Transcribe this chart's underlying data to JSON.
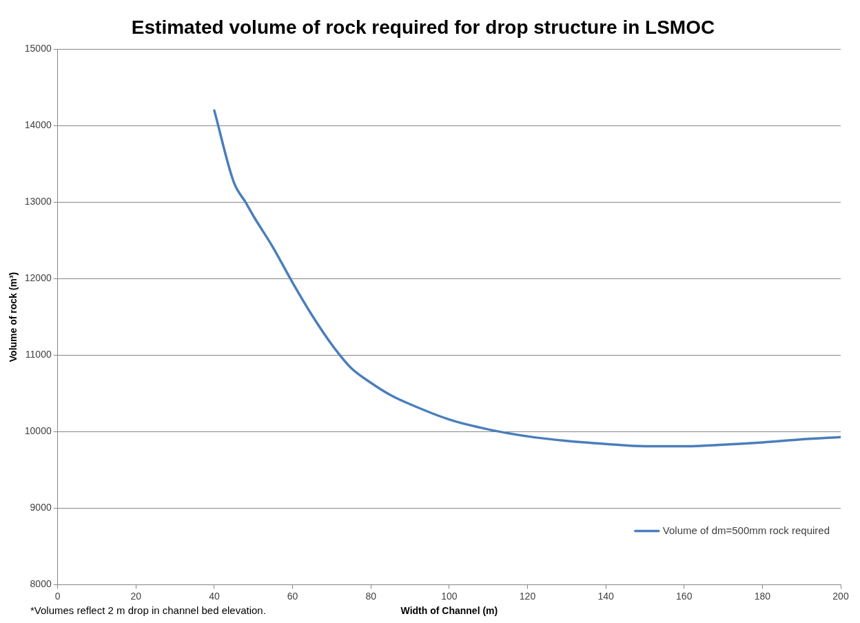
{
  "chart_data": {
    "type": "line",
    "title": "Estimated volume of rock required for drop structure in LSMOC",
    "xlabel": "Width of Channel (m)",
    "ylabel": "Volume of rock (m³)",
    "x": [
      40,
      45,
      48,
      50,
      55,
      60,
      65,
      70,
      75,
      80,
      85,
      90,
      100,
      110,
      120,
      130,
      140,
      150,
      155,
      160,
      170,
      180,
      190,
      200
    ],
    "series": [
      {
        "name": "Volume of dm=500mm rock required",
        "color": "#4a7ebb",
        "values": [
          14200,
          13260,
          13000,
          12820,
          12410,
          11950,
          11520,
          11140,
          10830,
          10640,
          10480,
          10360,
          10160,
          10030,
          9940,
          9880,
          9840,
          9810,
          9810,
          9810,
          9830,
          9860,
          9900,
          9930
        ]
      }
    ],
    "xlim": [
      0,
      200
    ],
    "xticks": [
      0,
      20,
      40,
      60,
      80,
      100,
      120,
      140,
      160,
      180,
      200
    ],
    "ylim": [
      8000,
      15000
    ],
    "yticks": [
      8000,
      9000,
      10000,
      11000,
      12000,
      13000,
      14000,
      15000
    ],
    "grid": "y",
    "legend": "bottom right",
    "marker": "none",
    "line_style": "solid",
    "annotations": [
      "*Volumes reflect 2 m drop in channel bed elevation."
    ]
  }
}
